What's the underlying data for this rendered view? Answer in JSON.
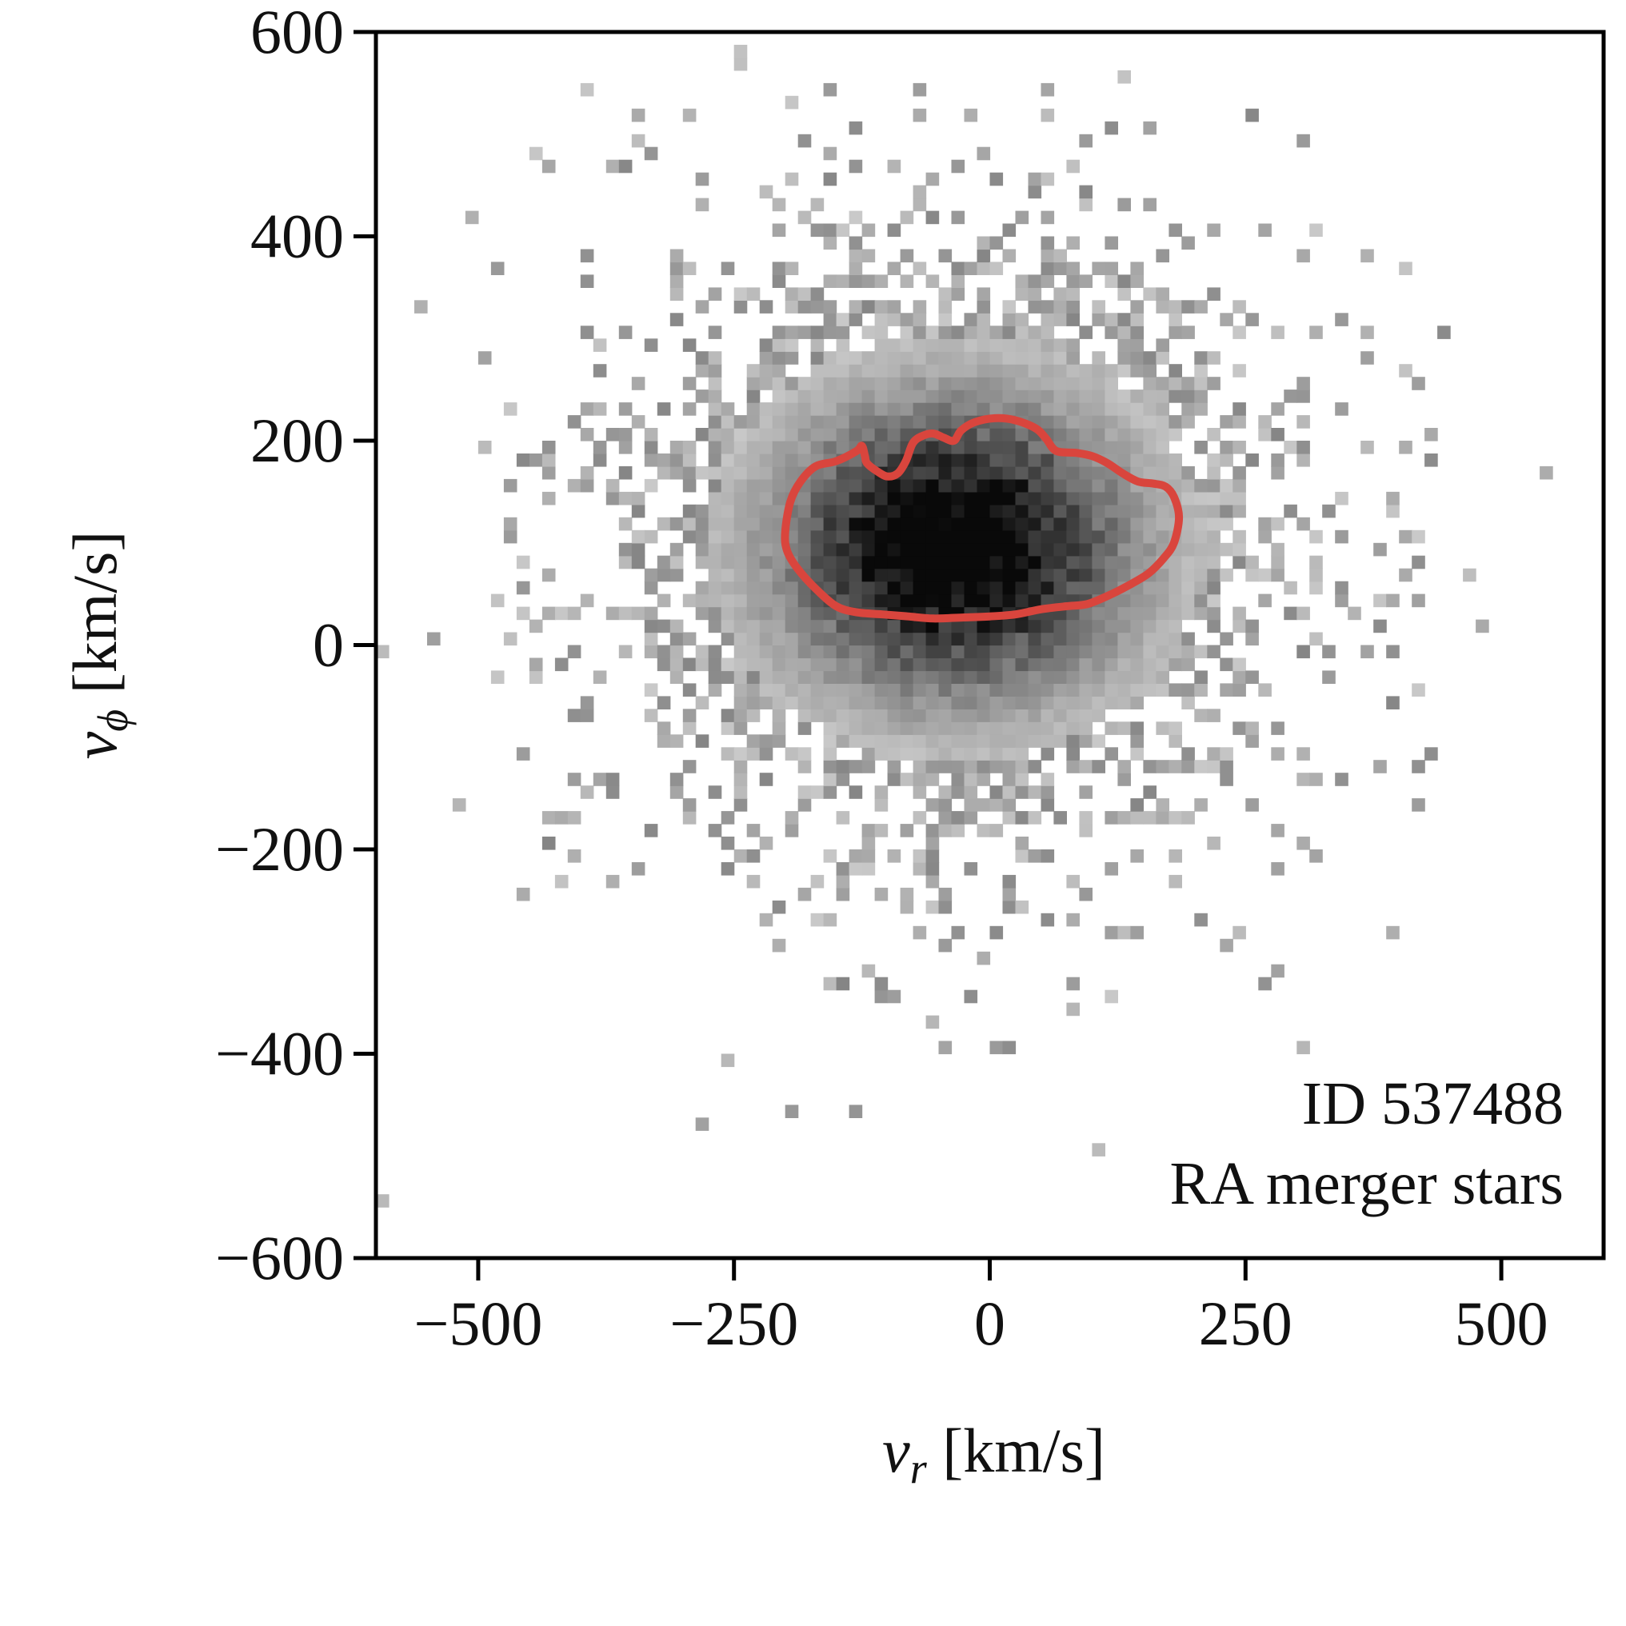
{
  "chart_data": {
    "type": "heatmap",
    "title": "",
    "xlabel": {
      "var": "v",
      "sub": "r",
      "unit": " [km/s]"
    },
    "ylabel": {
      "var": "v",
      "sub": "ϕ",
      "unit": " [km/s]"
    },
    "xlim": [
      -600,
      600
    ],
    "ylim": [
      -600,
      600
    ],
    "xticks": [
      -500,
      -250,
      0,
      250,
      500
    ],
    "yticks": [
      -600,
      -400,
      -200,
      0,
      200,
      400,
      600
    ],
    "xtick_labels": [
      "−500",
      "−250",
      "0",
      "250",
      "500"
    ],
    "ytick_labels": [
      "−600",
      "−400",
      "−200",
      "0",
      "200",
      "400",
      "600"
    ],
    "annotations": [
      "ID 537488",
      "RA merger stars"
    ],
    "grid": false,
    "colormap": "Greys",
    "histogram_model": {
      "bin_width": 12.5,
      "center": [
        -35,
        95
      ],
      "core_sigma": [
        105,
        85
      ],
      "outer_sigma": [
        190,
        175
      ],
      "seed": 537488
    },
    "contour": {
      "color": "#d9453d",
      "points": [
        [
          -200,
          110
        ],
        [
          -195,
          140
        ],
        [
          -185,
          160
        ],
        [
          -170,
          175
        ],
        [
          -150,
          180
        ],
        [
          -130,
          190
        ],
        [
          -125,
          195
        ],
        [
          -122,
          185
        ],
        [
          -120,
          178
        ],
        [
          -110,
          170
        ],
        [
          -100,
          165
        ],
        [
          -90,
          168
        ],
        [
          -82,
          180
        ],
        [
          -75,
          198
        ],
        [
          -65,
          205
        ],
        [
          -55,
          207
        ],
        [
          -45,
          203
        ],
        [
          -35,
          200
        ],
        [
          -28,
          210
        ],
        [
          -15,
          218
        ],
        [
          5,
          222
        ],
        [
          25,
          220
        ],
        [
          45,
          212
        ],
        [
          55,
          202
        ],
        [
          65,
          190
        ],
        [
          85,
          188
        ],
        [
          100,
          185
        ],
        [
          115,
          178
        ],
        [
          130,
          168
        ],
        [
          145,
          160
        ],
        [
          160,
          158
        ],
        [
          172,
          155
        ],
        [
          180,
          145
        ],
        [
          185,
          125
        ],
        [
          180,
          100
        ],
        [
          170,
          85
        ],
        [
          155,
          70
        ],
        [
          135,
          58
        ],
        [
          115,
          48
        ],
        [
          95,
          40
        ],
        [
          75,
          38
        ],
        [
          50,
          35
        ],
        [
          25,
          30
        ],
        [
          0,
          28
        ],
        [
          -25,
          27
        ],
        [
          -55,
          26
        ],
        [
          -80,
          28
        ],
        [
          -105,
          30
        ],
        [
          -130,
          32
        ],
        [
          -150,
          38
        ],
        [
          -170,
          55
        ],
        [
          -188,
          75
        ],
        [
          -198,
          92
        ]
      ]
    }
  }
}
